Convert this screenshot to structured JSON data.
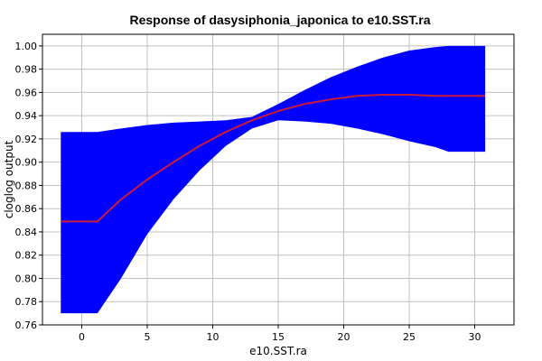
{
  "chart_data": {
    "type": "area",
    "title": "Response of dasysiphonia_japonica to e10.SST.ra",
    "xlabel": "e10.SST.ra",
    "ylabel": "cloglog output",
    "xlim": [
      -3,
      33
    ],
    "ylim": [
      0.76,
      1.01
    ],
    "x_ticks": [
      0,
      5,
      10,
      15,
      20,
      25,
      30
    ],
    "y_ticks": [
      0.76,
      0.78,
      0.8,
      0.82,
      0.84,
      0.86,
      0.88,
      0.9,
      0.92,
      0.94,
      0.96,
      0.98,
      1.0
    ],
    "grid": true,
    "colors": {
      "band": "#0000ff",
      "mean": "#cc1a3a"
    },
    "series": [
      {
        "role": "mean",
        "x": [
          -1.6,
          1.2,
          3,
          5,
          7,
          9,
          11,
          13,
          15,
          17,
          19,
          21,
          23,
          25,
          27,
          28,
          30.8
        ],
        "values": [
          0.849,
          0.849,
          0.868,
          0.885,
          0.9,
          0.914,
          0.926,
          0.936,
          0.944,
          0.95,
          0.954,
          0.957,
          0.958,
          0.958,
          0.957,
          0.957,
          0.957
        ]
      },
      {
        "role": "upper",
        "x": [
          -1.6,
          1.2,
          3,
          5,
          7,
          9,
          11,
          13,
          15,
          17,
          19,
          21,
          23,
          25,
          27,
          28,
          30.8
        ],
        "values": [
          0.926,
          0.926,
          0.929,
          0.932,
          0.934,
          0.935,
          0.936,
          0.939,
          0.95,
          0.962,
          0.973,
          0.982,
          0.99,
          0.996,
          0.999,
          1.0,
          1.0
        ]
      },
      {
        "role": "lower",
        "x": [
          -1.6,
          1.2,
          3,
          5,
          7,
          9,
          11,
          13,
          15,
          17,
          19,
          21,
          23,
          25,
          27,
          28,
          30.8
        ],
        "values": [
          0.77,
          0.77,
          0.8,
          0.838,
          0.868,
          0.893,
          0.914,
          0.929,
          0.936,
          0.935,
          0.933,
          0.929,
          0.924,
          0.918,
          0.913,
          0.909,
          0.909
        ]
      }
    ]
  }
}
